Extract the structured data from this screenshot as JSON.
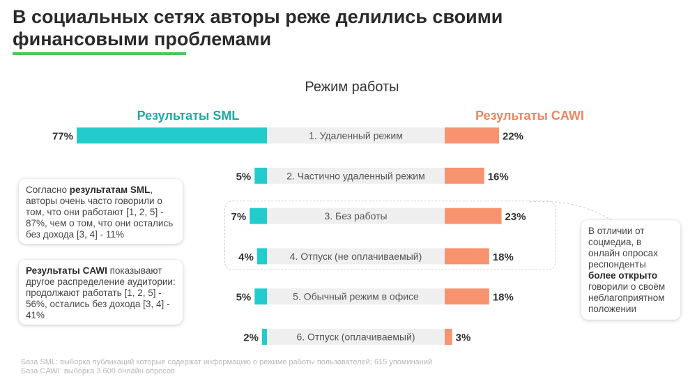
{
  "title": "В социальных сетях авторы реже делились своими финансовыми проблемами",
  "colors": {
    "sml": "#22CCCC",
    "cawi": "#F7936F",
    "sml_text": "#1FA9A7",
    "cawi_text": "#EE8560",
    "accent_underline": "#4CC85A",
    "label_band": "#EFEFEF"
  },
  "chart_data": {
    "type": "bar",
    "orientation": "horizontal-diverging",
    "title": "Режим работы",
    "categories": [
      "1. Удаленный режим",
      "2. Частично удаленный режим",
      "3. Без работы",
      "4. Отпуск (не оплачиваемый)",
      "5. Обычный режим в офисе",
      "6. Отпуск (оплачиваемый)"
    ],
    "series": [
      {
        "name": "Результаты SML",
        "values": [
          77,
          5,
          7,
          4,
          5,
          2
        ],
        "labels": [
          "77%",
          "5%",
          "7%",
          "4%",
          "5%",
          "2%"
        ]
      },
      {
        "name": "Результаты CAWI",
        "values": [
          22,
          16,
          23,
          18,
          18,
          3
        ],
        "labels": [
          "22%",
          "16%",
          "23%",
          "18%",
          "18%",
          "3%"
        ]
      }
    ],
    "xlim": [
      0,
      77
    ]
  },
  "callouts": {
    "sml": {
      "pre": "Согласно ",
      "bold": "результатам SML",
      "post": ", авторы очень часто говорили о том, что они работают [1, 2, 5] - 87%, чем о том, что они остались без дохода [3, 4] - 11%"
    },
    "cawi": {
      "bold": "Результаты CAWI",
      "post": " показывают другое распределение аудитории: продолжают работать [1, 2, 5] - 56%, остались без дохода [3, 4] - 41%"
    },
    "right": {
      "pre": "В отличии от соцмедиа, в онлайн опросах респонденты ",
      "bold": "более открыто",
      "post": " говорили о своём неблагоприятном положении"
    }
  },
  "footer": {
    "line1": "База SML: выборка публикаций которые содержат информацию о режиме работы пользователей; 615 упоминаний",
    "line2": "База CAWI: выборка 3 600 онлайн опросов"
  }
}
